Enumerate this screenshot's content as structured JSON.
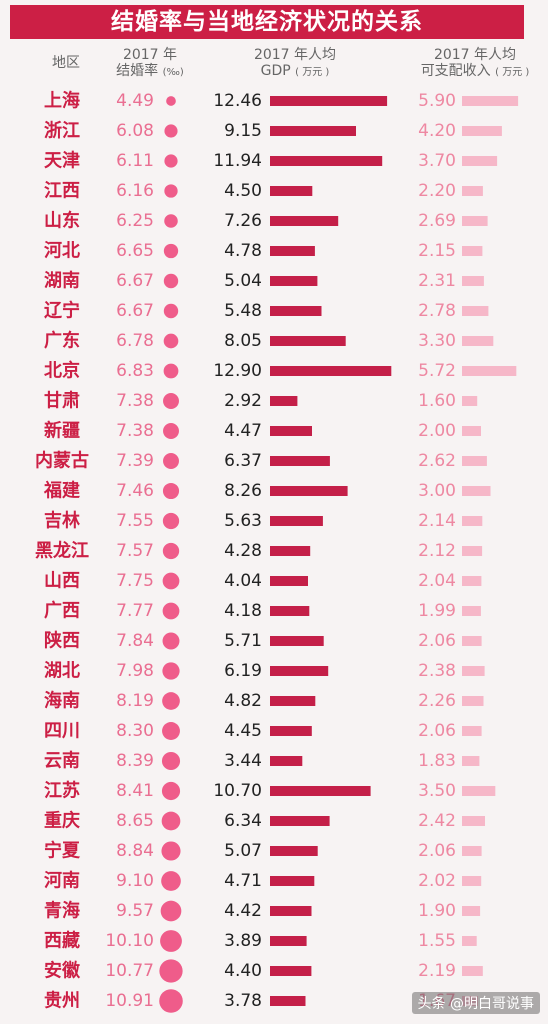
{
  "title": "结婚率与当地经济状况的关系",
  "headers": {
    "region": "地区",
    "marriage_l1": "2017 年",
    "marriage_l2": "结婚率",
    "marriage_unit": "(‰)",
    "gdp_l1": "2017 年人均",
    "gdp_l2": "GDP",
    "gdp_unit": "( 万元 )",
    "income_l1": "2017 年人均",
    "income_l2": "可支配收入",
    "income_unit": "( 万元 )"
  },
  "watermark": "头条 @明白哥说事",
  "colors": {
    "title_bg": "#cc1f45",
    "region_text": "#cc1f45",
    "marriage_text": "#ea6f92",
    "marriage_dot": "#ef5c8a",
    "gdp_bar": "#c41f48",
    "income_text": "#ee88a2",
    "income_bar": "#f6b7c8"
  },
  "chart_data": {
    "type": "table",
    "columns": [
      "地区",
      "2017 年结婚率 (‰)",
      "2017 年人均GDP (万元)",
      "2017 年人均可支配收入 (万元)"
    ],
    "rows": [
      [
        "上海",
        "4.49",
        "12.46",
        "5.90"
      ],
      [
        "浙江",
        "6.08",
        "9.15",
        "4.20"
      ],
      [
        "天津",
        "6.11",
        "11.94",
        "3.70"
      ],
      [
        "江西",
        "6.16",
        "4.50",
        "2.20"
      ],
      [
        "山东",
        "6.25",
        "7.26",
        "2.69"
      ],
      [
        "河北",
        "6.65",
        "4.78",
        "2.15"
      ],
      [
        "湖南",
        "6.67",
        "5.04",
        "2.31"
      ],
      [
        "辽宁",
        "6.67",
        "5.48",
        "2.78"
      ],
      [
        "广东",
        "6.78",
        "8.05",
        "3.30"
      ],
      [
        "北京",
        "6.83",
        "12.90",
        "5.72"
      ],
      [
        "甘肃",
        "7.38",
        "2.92",
        "1.60"
      ],
      [
        "新疆",
        "7.38",
        "4.47",
        "2.00"
      ],
      [
        "内蒙古",
        "7.39",
        "6.37",
        "2.62"
      ],
      [
        "福建",
        "7.46",
        "8.26",
        "3.00"
      ],
      [
        "吉林",
        "7.55",
        "5.63",
        "2.14"
      ],
      [
        "黑龙江",
        "7.57",
        "4.28",
        "2.12"
      ],
      [
        "山西",
        "7.75",
        "4.04",
        "2.04"
      ],
      [
        "广西",
        "7.77",
        "4.18",
        "1.99"
      ],
      [
        "陕西",
        "7.84",
        "5.71",
        "2.06"
      ],
      [
        "湖北",
        "7.98",
        "6.19",
        "2.38"
      ],
      [
        "海南",
        "8.19",
        "4.82",
        "2.26"
      ],
      [
        "四川",
        "8.30",
        "4.45",
        "2.06"
      ],
      [
        "云南",
        "8.39",
        "3.44",
        "1.83"
      ],
      [
        "江苏",
        "8.41",
        "10.70",
        "3.50"
      ],
      [
        "重庆",
        "8.65",
        "6.34",
        "2.42"
      ],
      [
        "宁夏",
        "8.84",
        "5.07",
        "2.06"
      ],
      [
        "河南",
        "9.10",
        "4.71",
        "2.02"
      ],
      [
        "青海",
        "9.57",
        "4.42",
        "1.90"
      ],
      [
        "西藏",
        "10.10",
        "3.89",
        "1.55"
      ],
      [
        "安徽",
        "10.77",
        "4.40",
        "2.19"
      ],
      [
        "贵州",
        "10.91",
        "3.78",
        "1.67"
      ]
    ]
  }
}
